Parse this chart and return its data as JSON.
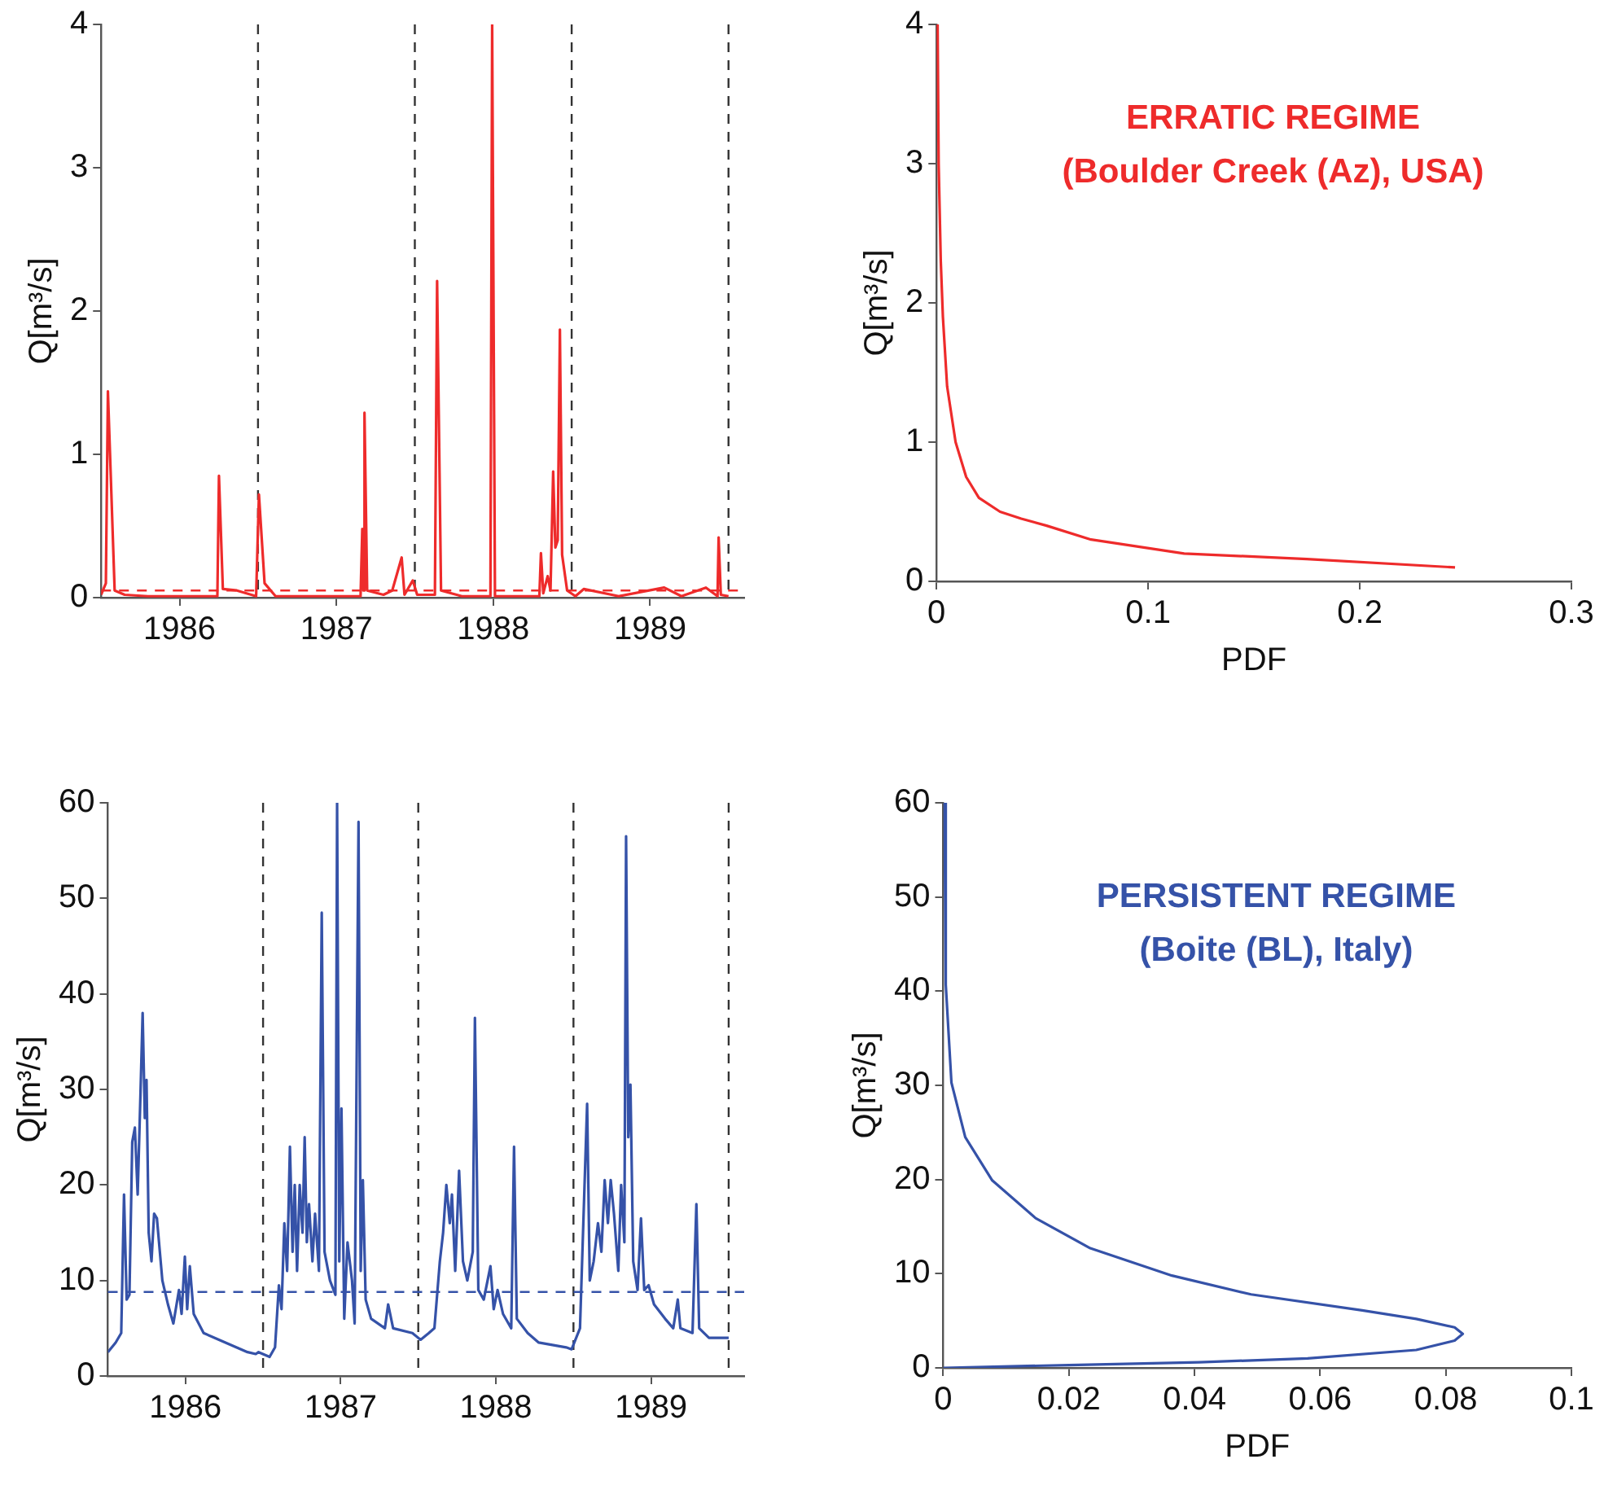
{
  "chart_data": [
    {
      "type": "line",
      "ylabel": "Q[m³/s]",
      "xlim": [
        1985.5,
        1989.6
      ],
      "xticks": [
        1986,
        1987,
        1988,
        1989
      ],
      "ylim": [
        0,
        4
      ],
      "yticks": [
        0,
        1,
        2,
        3,
        4
      ],
      "grid": false,
      "marker": "none",
      "series": [
        {
          "color": "#ee2b2b",
          "x": [
            1985.5,
            1985.53,
            1985.543,
            1985.586,
            1985.65,
            1985.798,
            1986.0,
            1986.241,
            1986.251,
            1986.276,
            1986.365,
            1986.488,
            1986.506,
            1986.542,
            1986.612,
            1986.8,
            1987.0,
            1987.154,
            1987.165,
            1987.172,
            1987.179,
            1987.196,
            1987.3,
            1987.356,
            1987.416,
            1987.434,
            1987.487,
            1987.515,
            1987.628,
            1987.642,
            1987.667,
            1987.8,
            1987.982,
            1987.993,
            1988.011,
            1988.15,
            1988.294,
            1988.304,
            1988.319,
            1988.347,
            1988.365,
            1988.382,
            1988.396,
            1988.411,
            1988.425,
            1988.439,
            1988.471,
            1988.524,
            1988.577,
            1988.8,
            1989.09,
            1989.2,
            1989.356,
            1989.43,
            1989.437,
            1989.451,
            1989.5
          ],
          "values": [
            0.02,
            0.1,
            1.44,
            0.05,
            0.02,
            0.01,
            0.01,
            0.01,
            0.85,
            0.06,
            0.05,
            0.01,
            0.72,
            0.1,
            0.01,
            0.01,
            0.01,
            0.01,
            0.48,
            0.05,
            1.29,
            0.05,
            0.02,
            0.05,
            0.28,
            0.02,
            0.12,
            0.02,
            0.02,
            2.21,
            0.05,
            0.01,
            0.01,
            4.0,
            0.01,
            0.01,
            0.01,
            0.31,
            0.03,
            0.15,
            0.05,
            0.88,
            0.35,
            0.4,
            1.87,
            0.3,
            0.05,
            0.01,
            0.06,
            0.01,
            0.07,
            0.01,
            0.07,
            0.01,
            0.42,
            0.02,
            0.01
          ]
        }
      ],
      "ref_lines": [
        {
          "axis": "x",
          "value": 1986.5,
          "color": "#333333",
          "line_style": "dashed"
        },
        {
          "axis": "x",
          "value": 1987.5,
          "color": "#333333",
          "line_style": "dashed"
        },
        {
          "axis": "x",
          "value": 1988.5,
          "color": "#333333",
          "line_style": "dashed"
        },
        {
          "axis": "x",
          "value": 1989.5,
          "color": "#333333",
          "line_style": "dashed"
        },
        {
          "axis": "y",
          "value": 0.05,
          "color": "#ee2b2b",
          "line_style": "dashed"
        }
      ]
    },
    {
      "type": "line",
      "xlabel": "PDF",
      "ylabel": "Q[m³/s]",
      "xlim": [
        0,
        0.3
      ],
      "xticks": [
        0,
        0.1,
        0.2,
        0.3
      ],
      "ylim": [
        0,
        4
      ],
      "yticks": [
        0,
        1,
        2,
        3,
        4
      ],
      "grid": false,
      "marker": "none",
      "series": [
        {
          "color": "#ee2b2b",
          "x": [
            0.0005,
            0.001,
            0.002,
            0.003,
            0.005,
            0.009,
            0.014,
            0.02,
            0.03,
            0.04,
            0.052,
            0.073,
            0.117,
            0.175,
            0.245
          ],
          "values": [
            4,
            3,
            2.3,
            1.9,
            1.4,
            1.0,
            0.75,
            0.6,
            0.5,
            0.45,
            0.4,
            0.3,
            0.2,
            0.16,
            0.1
          ]
        }
      ],
      "annotations": [
        "ERRATIC REGIME",
        "(Boulder Creek (Az), USA)"
      ]
    },
    {
      "type": "line",
      "ylabel": "Q[m³/s]",
      "xlim": [
        1985.5,
        1989.6
      ],
      "xticks": [
        1986,
        1987,
        1988,
        1989
      ],
      "ylim": [
        0,
        60
      ],
      "yticks": [
        0,
        10,
        20,
        30,
        40,
        50,
        60
      ],
      "grid": false,
      "marker": "none",
      "series": [
        {
          "color": "#3552a8",
          "x": [
            1985.5,
            1985.55,
            1985.586,
            1985.604,
            1985.621,
            1985.639,
            1985.657,
            1985.674,
            1985.692,
            1985.71,
            1985.724,
            1985.738,
            1985.749,
            1985.763,
            1985.781,
            1985.798,
            1985.816,
            1985.851,
            1985.887,
            1985.922,
            1985.958,
            1985.975,
            1985.996,
            1986.011,
            1986.028,
            1986.053,
            1986.117,
            1986.258,
            1986.4,
            1986.453,
            1986.471,
            1986.542,
            1986.577,
            1986.602,
            1986.619,
            1986.637,
            1986.655,
            1986.673,
            1986.69,
            1986.704,
            1986.719,
            1986.736,
            1986.754,
            1986.768,
            1986.782,
            1986.796,
            1986.818,
            1986.835,
            1986.86,
            1986.878,
            1986.896,
            1986.931,
            1986.966,
            1986.977,
            1986.991,
            1987.005,
            1987.023,
            1987.044,
            1987.073,
            1987.09,
            1987.115,
            1987.129,
            1987.143,
            1987.161,
            1987.196,
            1987.285,
            1987.306,
            1987.338,
            1987.462,
            1987.515,
            1987.568,
            1987.604,
            1987.639,
            1987.66,
            1987.681,
            1987.703,
            1987.717,
            1987.738,
            1987.763,
            1987.788,
            1987.816,
            1987.851,
            1987.865,
            1987.887,
            1987.922,
            1987.965,
            1987.986,
            1988.011,
            1988.046,
            1988.099,
            1988.117,
            1988.135,
            1988.205,
            1988.276,
            1988.453,
            1988.488,
            1988.542,
            1988.588,
            1988.605,
            1988.63,
            1988.658,
            1988.68,
            1988.701,
            1988.722,
            1988.74,
            1988.761,
            1988.789,
            1988.807,
            1988.828,
            1988.839,
            1988.853,
            1988.867,
            1988.885,
            1988.913,
            1988.935,
            1988.956,
            1988.984,
            1989.019,
            1989.09,
            1989.143,
            1989.172,
            1989.189,
            1989.267,
            1989.292,
            1989.31,
            1989.373,
            1989.5
          ],
          "values": [
            2.5,
            3.5,
            4.5,
            19,
            8,
            8.5,
            24.5,
            26,
            19,
            29.5,
            38,
            27,
            31,
            15,
            12,
            17,
            16.5,
            10,
            7.5,
            5.5,
            9,
            6.5,
            12.5,
            7,
            11.5,
            6.5,
            4.5,
            3.5,
            2.5,
            2.3,
            2.5,
            2,
            3,
            9.5,
            7,
            16,
            11,
            24,
            13,
            20,
            11,
            20,
            15,
            25,
            14,
            18,
            12,
            17,
            11,
            48.5,
            13,
            10,
            8.5,
            60,
            12,
            28,
            6,
            14,
            10,
            5.5,
            58,
            11,
            20.5,
            8,
            6,
            5,
            7.5,
            5,
            4.5,
            3.8,
            4.5,
            5,
            12,
            15,
            20,
            16,
            19,
            11,
            21.5,
            12,
            10,
            13,
            37.5,
            9,
            8,
            11.5,
            7,
            9,
            6.5,
            5,
            24,
            6,
            4.5,
            3.5,
            3,
            2.8,
            5,
            28.5,
            10,
            12,
            16,
            13,
            20.5,
            16,
            20.5,
            17,
            11,
            20,
            14,
            56.5,
            25,
            30.5,
            12,
            9,
            16.5,
            9,
            9.5,
            7.5,
            6,
            5,
            8,
            5,
            4.5,
            18,
            5,
            4,
            4
          ]
        }
      ],
      "ref_lines": [
        {
          "axis": "x",
          "value": 1986.5,
          "color": "#333333",
          "line_style": "dashed"
        },
        {
          "axis": "x",
          "value": 1987.5,
          "color": "#333333",
          "line_style": "dashed"
        },
        {
          "axis": "x",
          "value": 1988.5,
          "color": "#333333",
          "line_style": "dashed"
        },
        {
          "axis": "x",
          "value": 1989.5,
          "color": "#333333",
          "line_style": "dashed"
        },
        {
          "axis": "y",
          "value": 8.8,
          "color": "#3552a8",
          "line_style": "dashed"
        }
      ]
    },
    {
      "type": "line",
      "xlabel": "PDF",
      "ylabel": "Q[m³/s]",
      "xlim": [
        0,
        0.1
      ],
      "xticks": [
        0,
        0.02,
        0.04,
        0.06,
        0.08,
        0.1
      ],
      "ylim": [
        0,
        60
      ],
      "yticks": [
        0,
        10,
        20,
        30,
        40,
        50,
        60
      ],
      "grid": false,
      "marker": "none",
      "series": [
        {
          "color": "#3552a8",
          "x": [
            0.0002,
            0.0004,
            0.0013,
            0.0035,
            0.0078,
            0.0147,
            0.0234,
            0.0364,
            0.049,
            0.0667,
            0.0753,
            0.0814,
            0.0827,
            0.0814,
            0.0753,
            0.058,
            0.0407,
            0.02,
            0
          ],
          "values": [
            60,
            40.7,
            30.3,
            24.5,
            19.9,
            15.9,
            12.7,
            9.8,
            7.8,
            6.1,
            5.2,
            4.3,
            3.6,
            2.9,
            1.9,
            1.0,
            0.6,
            0.3,
            0
          ]
        }
      ],
      "annotations": [
        "PERSISTENT REGIME",
        "(Boite (BL), Italy)"
      ]
    }
  ]
}
